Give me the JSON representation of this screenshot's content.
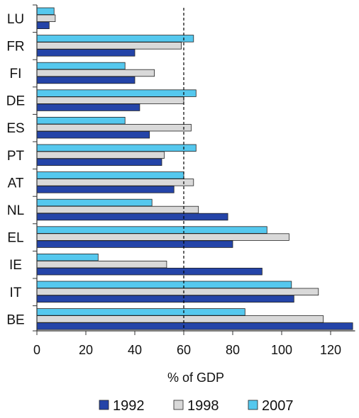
{
  "chart_data": {
    "type": "bar",
    "orientation": "horizontal",
    "categories": [
      "LU",
      "FR",
      "FI",
      "DE",
      "ES",
      "PT",
      "AT",
      "NL",
      "EL",
      "IE",
      "IT",
      "BE"
    ],
    "series": [
      {
        "name": "1992",
        "color": "#2444a8",
        "values": [
          5,
          40,
          40,
          42,
          46,
          51,
          56,
          78,
          80,
          92,
          105,
          129
        ]
      },
      {
        "name": "1998",
        "color": "#d9d9d9",
        "values": [
          7.5,
          59,
          48,
          60,
          63,
          52,
          64,
          66,
          103,
          53,
          115,
          117
        ]
      },
      {
        "name": "2007",
        "color": "#55c8ee",
        "values": [
          7,
          64,
          36,
          65,
          36,
          65,
          60,
          47,
          94,
          25,
          104,
          85
        ]
      }
    ],
    "xlabel": "% of GDP",
    "xlim": [
      0,
      130
    ],
    "xticks": [
      0,
      20,
      40,
      60,
      80,
      100,
      120
    ],
    "reference_line": {
      "value": 60,
      "style": "dashed"
    },
    "legend_position": "bottom",
    "grid": false
  }
}
